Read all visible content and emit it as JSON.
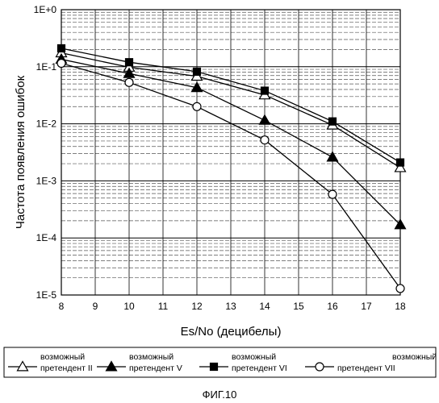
{
  "chart_data": {
    "type": "line",
    "title": "",
    "xlabel": "Es/No (децибелы)",
    "ylabel": "Частота появления ошибок",
    "x": [
      8,
      10,
      12,
      14,
      16,
      18
    ],
    "xlim": [
      8,
      18
    ],
    "xticks": [
      "8",
      "9",
      "10",
      "11",
      "12",
      "13",
      "14",
      "15",
      "16",
      "17",
      "18"
    ],
    "ylim": [
      1e-05,
      1
    ],
    "yscale": "log",
    "yticks": [
      "1E-5",
      "1E-4",
      "1E-3",
      "1E-2",
      "1E-1",
      "1E+0"
    ],
    "grid": true,
    "legend_position": "bottom",
    "series": [
      {
        "name_line1": "возможный",
        "name_line2": "претендент II",
        "marker": "triangle-open",
        "values": [
          0.175,
          0.098,
          0.068,
          0.032,
          0.0095,
          0.0017
        ]
      },
      {
        "name_line1": "возможный",
        "name_line2": "претендент V",
        "marker": "triangle-filled",
        "values": [
          0.135,
          0.076,
          0.043,
          0.0115,
          0.0026,
          0.00017
        ]
      },
      {
        "name_line1": "возможный",
        "name_line2": "претендент VI",
        "marker": "square-filled",
        "values": [
          0.21,
          0.12,
          0.082,
          0.038,
          0.011,
          0.0021
        ]
      },
      {
        "name_line1": "возможный",
        "name_line2": "претендент VII",
        "marker": "circle-open",
        "values": [
          0.115,
          0.053,
          0.02,
          0.0052,
          0.00058,
          1.3e-05
        ]
      }
    ]
  },
  "caption": "ФИГ.10"
}
